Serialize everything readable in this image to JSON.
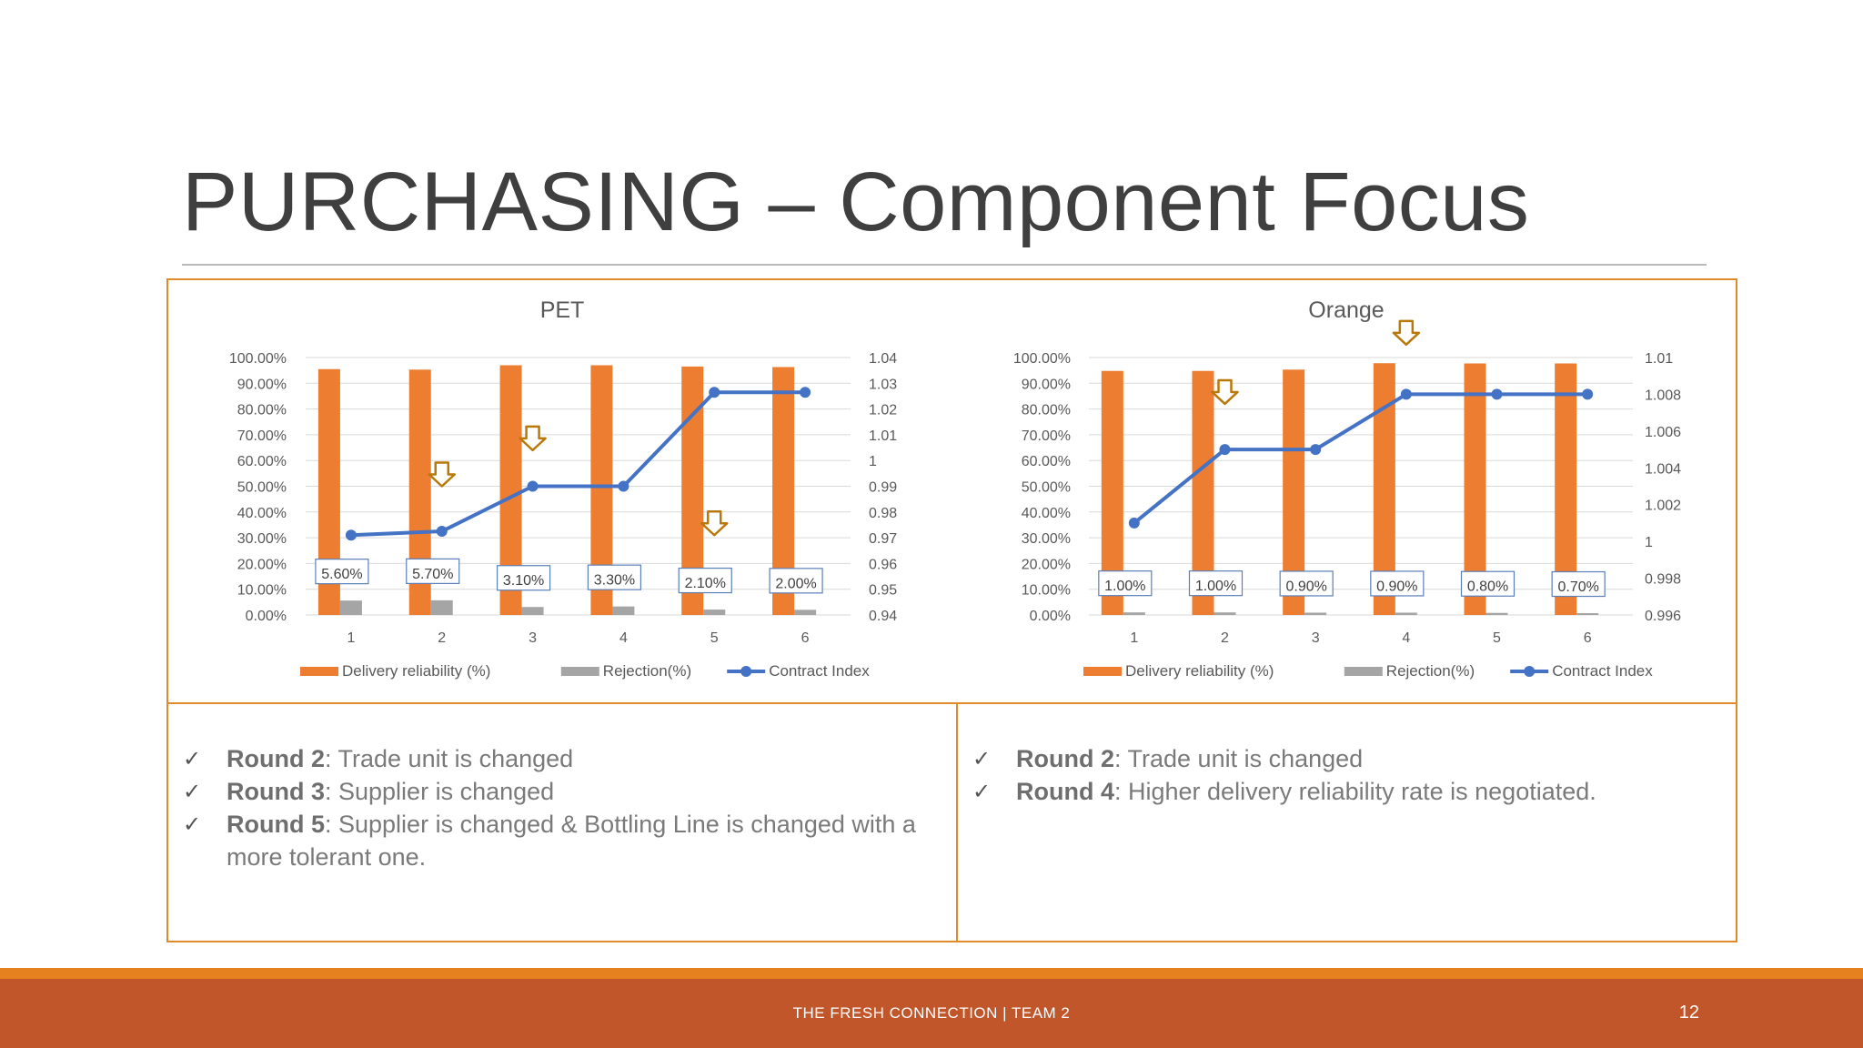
{
  "slide": {
    "title": "PURCHASING – Component Focus",
    "footer_text": "THE FRESH CONNECTION  |   TEAM 2",
    "page_number": "12"
  },
  "notes_left": [
    {
      "bold": "Round 2",
      "text": ": Trade unit is changed"
    },
    {
      "bold": "Round 3",
      "text": ": Supplier is changed"
    },
    {
      "bold": "Round 5",
      "text": ": Supplier is changed & Bottling Line is changed with a more tolerant one."
    }
  ],
  "notes_right": [
    {
      "bold": "Round 2",
      "text": ": Trade unit is changed"
    },
    {
      "bold": "Round 4",
      "text": ": Higher delivery reliability rate is negotiated."
    }
  ],
  "chart_data": [
    {
      "type": "bar",
      "title": "PET",
      "categories": [
        "1",
        "2",
        "3",
        "4",
        "5",
        "6"
      ],
      "series": [
        {
          "name": "Delivery reliability (%)",
          "type": "bar",
          "axis": "left",
          "color": "#ed7d31",
          "values": [
            95.5,
            95.3,
            97.0,
            97.0,
            96.5,
            96.3
          ]
        },
        {
          "name": "Rejection(%)",
          "type": "bar",
          "axis": "left",
          "color": "#a5a5a5",
          "values": [
            5.6,
            5.7,
            3.1,
            3.3,
            2.1,
            2.0
          ],
          "labels": [
            "5.60%",
            "5.70%",
            "3.10%",
            "3.30%",
            "2.10%",
            "2.00%"
          ]
        },
        {
          "name": "Contract Index",
          "type": "line",
          "axis": "right",
          "color": "#4472c4",
          "values": [
            0.971,
            0.9725,
            0.99,
            0.99,
            1.0265,
            1.0265
          ]
        }
      ],
      "y_left": {
        "min": 0,
        "max": 100,
        "ticks": [
          "0.00%",
          "10.00%",
          "20.00%",
          "30.00%",
          "40.00%",
          "50.00%",
          "60.00%",
          "70.00%",
          "80.00%",
          "90.00%",
          "100.00%"
        ]
      },
      "y_right": {
        "min": 0.94,
        "max": 1.04,
        "ticks": [
          "0.94",
          "0.95",
          "0.96",
          "0.97",
          "0.98",
          "0.99",
          "1",
          "1.01",
          "1.02",
          "1.03",
          "1.04"
        ]
      },
      "arrows": [
        {
          "category_index": 1,
          "value": 50
        },
        {
          "category_index": 2,
          "value": 64
        },
        {
          "category_index": 4,
          "value": 31
        }
      ],
      "legend": [
        "Delivery reliability (%)",
        "Rejection(%)",
        "Contract Index"
      ]
    },
    {
      "type": "bar",
      "title": "Orange",
      "categories": [
        "1",
        "2",
        "3",
        "4",
        "5",
        "6"
      ],
      "series": [
        {
          "name": "Delivery reliability (%)",
          "type": "bar",
          "axis": "left",
          "color": "#ed7d31",
          "values": [
            94.8,
            94.8,
            95.3,
            97.8,
            97.7,
            97.7
          ]
        },
        {
          "name": "Rejection(%)",
          "type": "bar",
          "axis": "left",
          "color": "#a5a5a5",
          "values": [
            1.0,
            1.0,
            0.9,
            0.9,
            0.8,
            0.7
          ],
          "labels": [
            "1.00%",
            "1.00%",
            "0.90%",
            "0.90%",
            "0.80%",
            "0.70%"
          ]
        },
        {
          "name": "Contract Index",
          "type": "line",
          "axis": "right",
          "color": "#4472c4",
          "values": [
            1.001,
            1.005,
            1.005,
            1.008,
            1.008,
            1.008
          ]
        }
      ],
      "y_left": {
        "min": 0,
        "max": 100,
        "ticks": [
          "0.00%",
          "10.00%",
          "20.00%",
          "30.00%",
          "40.00%",
          "50.00%",
          "60.00%",
          "70.00%",
          "80.00%",
          "90.00%",
          "100.00%"
        ]
      },
      "y_right": {
        "min": 0.996,
        "max": 1.01,
        "ticks": [
          "0.996",
          "0.998",
          "1",
          "1.002",
          "1.004",
          "1.006",
          "1.008",
          "1.01"
        ]
      },
      "arrows": [
        {
          "category_index": 1,
          "value": 82
        },
        {
          "category_index": 3,
          "value": 105
        }
      ],
      "legend": [
        "Delivery reliability (%)",
        "Rejection(%)",
        "Contract Index"
      ]
    }
  ]
}
